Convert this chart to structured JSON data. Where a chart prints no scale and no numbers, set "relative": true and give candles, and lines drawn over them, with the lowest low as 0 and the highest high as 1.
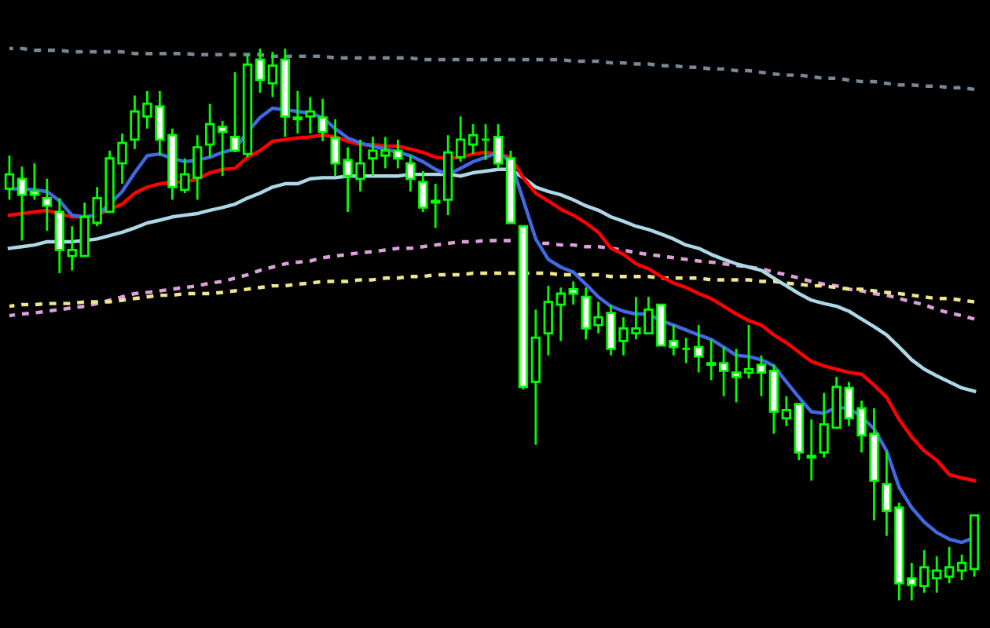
{
  "chart_data": {
    "type": "candlestick",
    "relative": true,
    "color": "#00ff00",
    "categories": [
      null,
      null,
      null,
      null,
      null,
      null,
      null,
      null,
      null,
      null,
      null,
      null,
      null,
      null,
      null,
      null,
      null,
      null,
      null,
      null,
      null,
      null,
      null,
      null,
      null,
      null,
      null,
      null,
      null,
      null,
      null,
      null,
      null,
      null,
      null,
      null,
      null,
      null,
      null,
      null,
      null,
      null,
      null,
      null,
      null,
      null,
      null,
      null,
      null,
      null,
      null,
      null,
      null,
      null,
      null,
      null,
      null,
      null,
      null,
      null,
      null,
      null,
      null,
      null,
      null,
      null,
      null,
      null,
      null,
      null,
      null,
      null,
      null,
      null,
      null,
      null,
      null,
      null
    ],
    "ohlc": [
      [
        0.746,
        0.806,
        0.726,
        0.772
      ],
      [
        0.764,
        0.786,
        0.652,
        0.735
      ],
      [
        0.741,
        0.792,
        0.726,
        0.735
      ],
      [
        0.729,
        0.764,
        0.67,
        0.715
      ],
      [
        0.704,
        0.729,
        0.593,
        0.635
      ],
      [
        0.624,
        0.678,
        0.598,
        0.635
      ],
      [
        0.624,
        0.721,
        0.624,
        0.695
      ],
      [
        0.684,
        0.749,
        0.678,
        0.729
      ],
      [
        0.704,
        0.815,
        0.704,
        0.801
      ],
      [
        0.792,
        0.846,
        0.755,
        0.829
      ],
      [
        0.835,
        0.915,
        0.818,
        0.886
      ],
      [
        0.877,
        0.923,
        0.855,
        0.9
      ],
      [
        0.895,
        0.923,
        0.806,
        0.835
      ],
      [
        0.843,
        0.855,
        0.726,
        0.749
      ],
      [
        0.744,
        0.801,
        0.738,
        0.772
      ],
      [
        0.766,
        0.843,
        0.726,
        0.821
      ],
      [
        0.826,
        0.9,
        0.803,
        0.863
      ],
      [
        0.858,
        0.869,
        0.769,
        0.849
      ],
      [
        0.84,
        0.957,
        0.812,
        0.815
      ],
      [
        0.809,
        0.989,
        0.803,
        0.971
      ],
      [
        0.98,
        1.0,
        0.92,
        0.943
      ],
      [
        0.937,
        0.994,
        0.912,
        0.969
      ],
      [
        0.98,
        1.0,
        0.84,
        0.877
      ],
      [
        0.875,
        0.923,
        0.846,
        0.872
      ],
      [
        0.877,
        0.912,
        0.846,
        0.886
      ],
      [
        0.875,
        0.909,
        0.832,
        0.849
      ],
      [
        0.838,
        0.872,
        0.769,
        0.792
      ],
      [
        0.798,
        0.821,
        0.704,
        0.769
      ],
      [
        0.764,
        0.835,
        0.741,
        0.792
      ],
      [
        0.801,
        0.84,
        0.769,
        0.815
      ],
      [
        0.806,
        0.84,
        0.783,
        0.815
      ],
      [
        0.815,
        0.835,
        0.783,
        0.801
      ],
      [
        0.792,
        0.806,
        0.741,
        0.764
      ],
      [
        0.758,
        0.778,
        0.704,
        0.712
      ],
      [
        0.724,
        0.755,
        0.675,
        0.721
      ],
      [
        0.726,
        0.843,
        0.698,
        0.812
      ],
      [
        0.803,
        0.877,
        0.795,
        0.835
      ],
      [
        0.826,
        0.863,
        0.809,
        0.843
      ],
      [
        0.835,
        0.863,
        0.798,
        0.835
      ],
      [
        0.84,
        0.863,
        0.783,
        0.792
      ],
      [
        0.801,
        0.815,
        0.684,
        0.684
      ],
      [
        0.678,
        0.678,
        0.382,
        0.387
      ],
      [
        0.396,
        0.527,
        0.282,
        0.476
      ],
      [
        0.484,
        0.57,
        0.444,
        0.541
      ],
      [
        0.536,
        0.567,
        0.47,
        0.556
      ],
      [
        0.564,
        0.578,
        0.536,
        0.556
      ],
      [
        0.55,
        0.567,
        0.473,
        0.493
      ],
      [
        0.499,
        0.541,
        0.484,
        0.513
      ],
      [
        0.521,
        0.536,
        0.444,
        0.456
      ],
      [
        0.47,
        0.513,
        0.444,
        0.493
      ],
      [
        0.484,
        0.55,
        0.473,
        0.493
      ],
      [
        0.484,
        0.55,
        0.484,
        0.527
      ],
      [
        0.536,
        0.536,
        0.462,
        0.462
      ],
      [
        0.47,
        0.499,
        0.444,
        0.459
      ],
      [
        0.456,
        0.476,
        0.43,
        0.456
      ],
      [
        0.459,
        0.499,
        0.413,
        0.442
      ],
      [
        0.43,
        0.473,
        0.399,
        0.427
      ],
      [
        0.43,
        0.459,
        0.37,
        0.416
      ],
      [
        0.413,
        0.456,
        0.359,
        0.405
      ],
      [
        0.413,
        0.499,
        0.402,
        0.419
      ],
      [
        0.427,
        0.444,
        0.37,
        0.413
      ],
      [
        0.416,
        0.427,
        0.302,
        0.342
      ],
      [
        0.33,
        0.37,
        0.316,
        0.345
      ],
      [
        0.356,
        0.356,
        0.254,
        0.268
      ],
      [
        0.262,
        0.328,
        0.217,
        0.259
      ],
      [
        0.268,
        0.376,
        0.259,
        0.319
      ],
      [
        0.313,
        0.405,
        0.313,
        0.387
      ],
      [
        0.385,
        0.396,
        0.316,
        0.33
      ],
      [
        0.348,
        0.362,
        0.268,
        0.299
      ],
      [
        0.302,
        0.348,
        0.145,
        0.217
      ],
      [
        0.211,
        0.271,
        0.117,
        0.162
      ],
      [
        0.168,
        0.177,
        0.0,
        0.031
      ],
      [
        0.04,
        0.068,
        0.0,
        0.028
      ],
      [
        0.026,
        0.091,
        0.014,
        0.06
      ],
      [
        0.04,
        0.08,
        0.014,
        0.054
      ],
      [
        0.043,
        0.097,
        0.031,
        0.06
      ],
      [
        0.054,
        0.083,
        0.037,
        0.068
      ],
      [
        0.057,
        0.154,
        0.043,
        0.154
      ]
    ],
    "colors": [
      "#000000",
      "#ffffff",
      "#ffffff",
      "#ffffff",
      "#ffffff",
      "#000000",
      "#000000",
      "#000000",
      "#000000",
      "#000000",
      "#000000",
      "#000000",
      "#ffffff",
      "#ffffff",
      "#000000",
      "#000000",
      "#000000",
      "#ffffff",
      "#ffffff",
      "#000000",
      "#ffffff",
      "#000000",
      "#ffffff",
      "#ffffff",
      "#000000",
      "#ffffff",
      "#ffffff",
      "#ffffff",
      "#000000",
      "#000000",
      "#000000",
      "#ffffff",
      "#ffffff",
      "#ffffff",
      "#ffffff",
      "#000000",
      "#000000",
      "#000000",
      "#00ff00",
      "#ffffff",
      "#ffffff",
      "#ffffff",
      "#000000",
      "#000000",
      "#000000",
      "#ffffff",
      "#ffffff",
      "#000000",
      "#ffffff",
      "#000000",
      "#000000",
      "#000000",
      "#ffffff",
      "#ffffff",
      "#00ff00",
      "#ffffff",
      "#ffffff",
      "#ffffff",
      "#ffffff",
      "#000000",
      "#ffffff",
      "#ffffff",
      "#000000",
      "#ffffff",
      "#ffffff",
      "#000000",
      "#000000",
      "#ffffff",
      "#ffffff",
      "#ffffff",
      "#ffffff",
      "#ffffff",
      "#ffffff",
      "#000000",
      "#000000",
      "#000000",
      "#000000",
      "#000000"
    ],
    "series": [
      {
        "type": "line",
        "line_style": "dashed",
        "color": "#778899",
        "values": [
          1.0,
          1.0,
          0.997,
          0.997,
          0.997,
          0.994,
          0.994,
          0.994,
          0.994,
          0.994,
          0.991,
          0.991,
          0.991,
          0.991,
          0.991,
          0.989,
          0.989,
          0.989,
          0.989,
          0.989,
          0.989,
          0.986,
          0.986,
          0.986,
          0.986,
          0.986,
          0.983,
          0.983,
          0.983,
          0.983,
          0.983,
          0.983,
          0.983,
          0.98,
          0.98,
          0.98,
          0.98,
          0.98,
          0.98,
          0.98,
          0.98,
          0.98,
          0.98,
          0.98,
          0.98,
          0.977,
          0.977,
          0.977,
          0.974,
          0.974,
          0.972,
          0.972,
          0.969,
          0.969,
          0.966,
          0.966,
          0.963,
          0.963,
          0.96,
          0.96,
          0.957,
          0.954,
          0.952,
          0.952,
          0.949,
          0.946,
          0.946,
          0.943,
          0.94,
          0.94,
          0.937,
          0.934,
          0.934,
          0.932,
          0.932,
          0.929,
          0.929,
          0.926
        ]
      },
      {
        "type": "line",
        "line_style": "dashed",
        "color": "#dda0dd",
        "values": [
          0.516,
          0.519,
          0.521,
          0.524,
          0.527,
          0.53,
          0.533,
          0.538,
          0.544,
          0.55,
          0.556,
          0.558,
          0.561,
          0.564,
          0.567,
          0.57,
          0.575,
          0.578,
          0.584,
          0.59,
          0.598,
          0.604,
          0.61,
          0.613,
          0.615,
          0.621,
          0.624,
          0.627,
          0.63,
          0.632,
          0.635,
          0.638,
          0.638,
          0.641,
          0.644,
          0.647,
          0.65,
          0.65,
          0.652,
          0.652,
          0.652,
          null,
          0.647,
          0.647,
          0.644,
          0.644,
          0.641,
          0.641,
          0.638,
          0.635,
          0.63,
          0.627,
          0.624,
          0.621,
          0.618,
          0.615,
          0.613,
          0.61,
          0.607,
          0.604,
          0.601,
          0.595,
          0.59,
          0.584,
          0.578,
          0.573,
          0.57,
          0.564,
          0.561,
          0.556,
          0.553,
          0.547,
          0.541,
          0.536,
          0.527,
          0.521,
          0.516,
          0.51
        ]
      },
      {
        "type": "line",
        "line_style": "dashed",
        "color": "#f0e68c",
        "values": [
          0.533,
          0.536,
          0.536,
          0.538,
          0.538,
          0.538,
          0.541,
          0.541,
          0.541,
          0.544,
          0.547,
          0.55,
          0.553,
          0.553,
          0.556,
          0.556,
          0.556,
          0.558,
          0.561,
          0.564,
          0.567,
          0.57,
          0.57,
          0.573,
          0.575,
          0.578,
          0.578,
          0.578,
          0.581,
          0.581,
          0.584,
          0.584,
          0.587,
          0.587,
          0.59,
          0.59,
          0.59,
          0.593,
          0.593,
          0.593,
          0.593,
          0.593,
          0.593,
          0.593,
          0.59,
          0.59,
          0.59,
          0.59,
          0.587,
          0.587,
          0.587,
          0.587,
          0.584,
          0.584,
          0.584,
          0.584,
          0.581,
          0.581,
          0.581,
          0.581,
          0.578,
          0.578,
          0.575,
          0.573,
          0.57,
          0.57,
          0.567,
          0.564,
          0.564,
          0.561,
          0.558,
          0.556,
          0.553,
          0.55,
          0.547,
          0.547,
          0.544,
          0.541
        ]
      },
      {
        "type": "line",
        "line_style": "solid",
        "color": "#add8e6",
        "values": [
          0.638,
          0.641,
          0.644,
          0.65,
          0.65,
          0.65,
          0.652,
          0.655,
          0.661,
          0.667,
          0.675,
          0.684,
          0.689,
          0.695,
          0.698,
          0.701,
          0.707,
          0.712,
          0.718,
          0.729,
          0.738,
          0.749,
          0.755,
          0.755,
          0.764,
          0.766,
          0.766,
          0.769,
          0.769,
          0.769,
          0.769,
          0.769,
          0.772,
          0.772,
          0.772,
          0.772,
          0.769,
          0.775,
          0.778,
          0.781,
          0.781,
          0.766,
          0.749,
          0.741,
          0.735,
          0.726,
          0.715,
          0.707,
          0.695,
          0.687,
          0.678,
          0.672,
          0.664,
          0.655,
          0.644,
          0.638,
          0.627,
          0.618,
          0.61,
          0.604,
          0.598,
          0.584,
          0.57,
          0.556,
          0.544,
          0.538,
          0.533,
          0.524,
          0.51,
          0.496,
          0.481,
          0.459,
          0.436,
          0.419,
          0.407,
          0.396,
          0.385,
          0.379
        ]
      },
      {
        "type": "line",
        "line_style": "solid",
        "color": "#ff0000",
        "values": [
          0.698,
          0.701,
          0.704,
          0.707,
          0.701,
          0.695,
          0.695,
          0.698,
          0.709,
          0.718,
          0.738,
          0.749,
          0.755,
          0.758,
          0.758,
          0.764,
          0.775,
          0.781,
          0.783,
          0.803,
          0.815,
          0.832,
          0.835,
          0.838,
          0.84,
          0.843,
          0.84,
          0.832,
          0.826,
          0.826,
          0.823,
          0.823,
          0.818,
          0.812,
          0.803,
          0.801,
          0.803,
          0.809,
          0.812,
          0.809,
          0.803,
          0.766,
          0.738,
          0.724,
          0.709,
          0.698,
          0.684,
          0.667,
          0.638,
          0.627,
          0.61,
          0.601,
          0.587,
          0.575,
          0.567,
          0.556,
          0.547,
          0.533,
          0.519,
          0.507,
          0.499,
          0.481,
          0.467,
          0.45,
          0.433,
          0.425,
          0.419,
          0.413,
          0.41,
          0.39,
          0.368,
          0.328,
          0.296,
          0.271,
          0.254,
          0.228,
          0.222,
          0.217
        ]
      },
      {
        "type": "line",
        "line_style": "solid",
        "color": "#4169e1",
        "values": [
          0.746,
          0.746,
          0.744,
          0.741,
          0.724,
          0.698,
          0.695,
          0.698,
          0.718,
          0.741,
          0.775,
          0.806,
          0.809,
          0.801,
          0.795,
          0.798,
          0.803,
          0.812,
          0.818,
          0.849,
          0.875,
          0.892,
          0.889,
          0.886,
          0.883,
          0.875,
          0.855,
          0.838,
          0.829,
          0.823,
          0.818,
          0.812,
          0.806,
          0.795,
          0.781,
          0.772,
          0.783,
          0.795,
          0.803,
          0.812,
          0.795,
          0.726,
          0.655,
          0.618,
          0.604,
          0.595,
          0.573,
          0.55,
          0.533,
          0.524,
          0.519,
          0.519,
          0.507,
          0.499,
          0.49,
          0.481,
          0.473,
          0.459,
          0.444,
          0.442,
          0.436,
          0.425,
          0.396,
          0.368,
          0.342,
          0.339,
          0.35,
          0.348,
          0.333,
          0.311,
          0.271,
          0.205,
          0.168,
          0.142,
          0.123,
          0.111,
          0.105,
          0.114
        ]
      }
    ]
  }
}
